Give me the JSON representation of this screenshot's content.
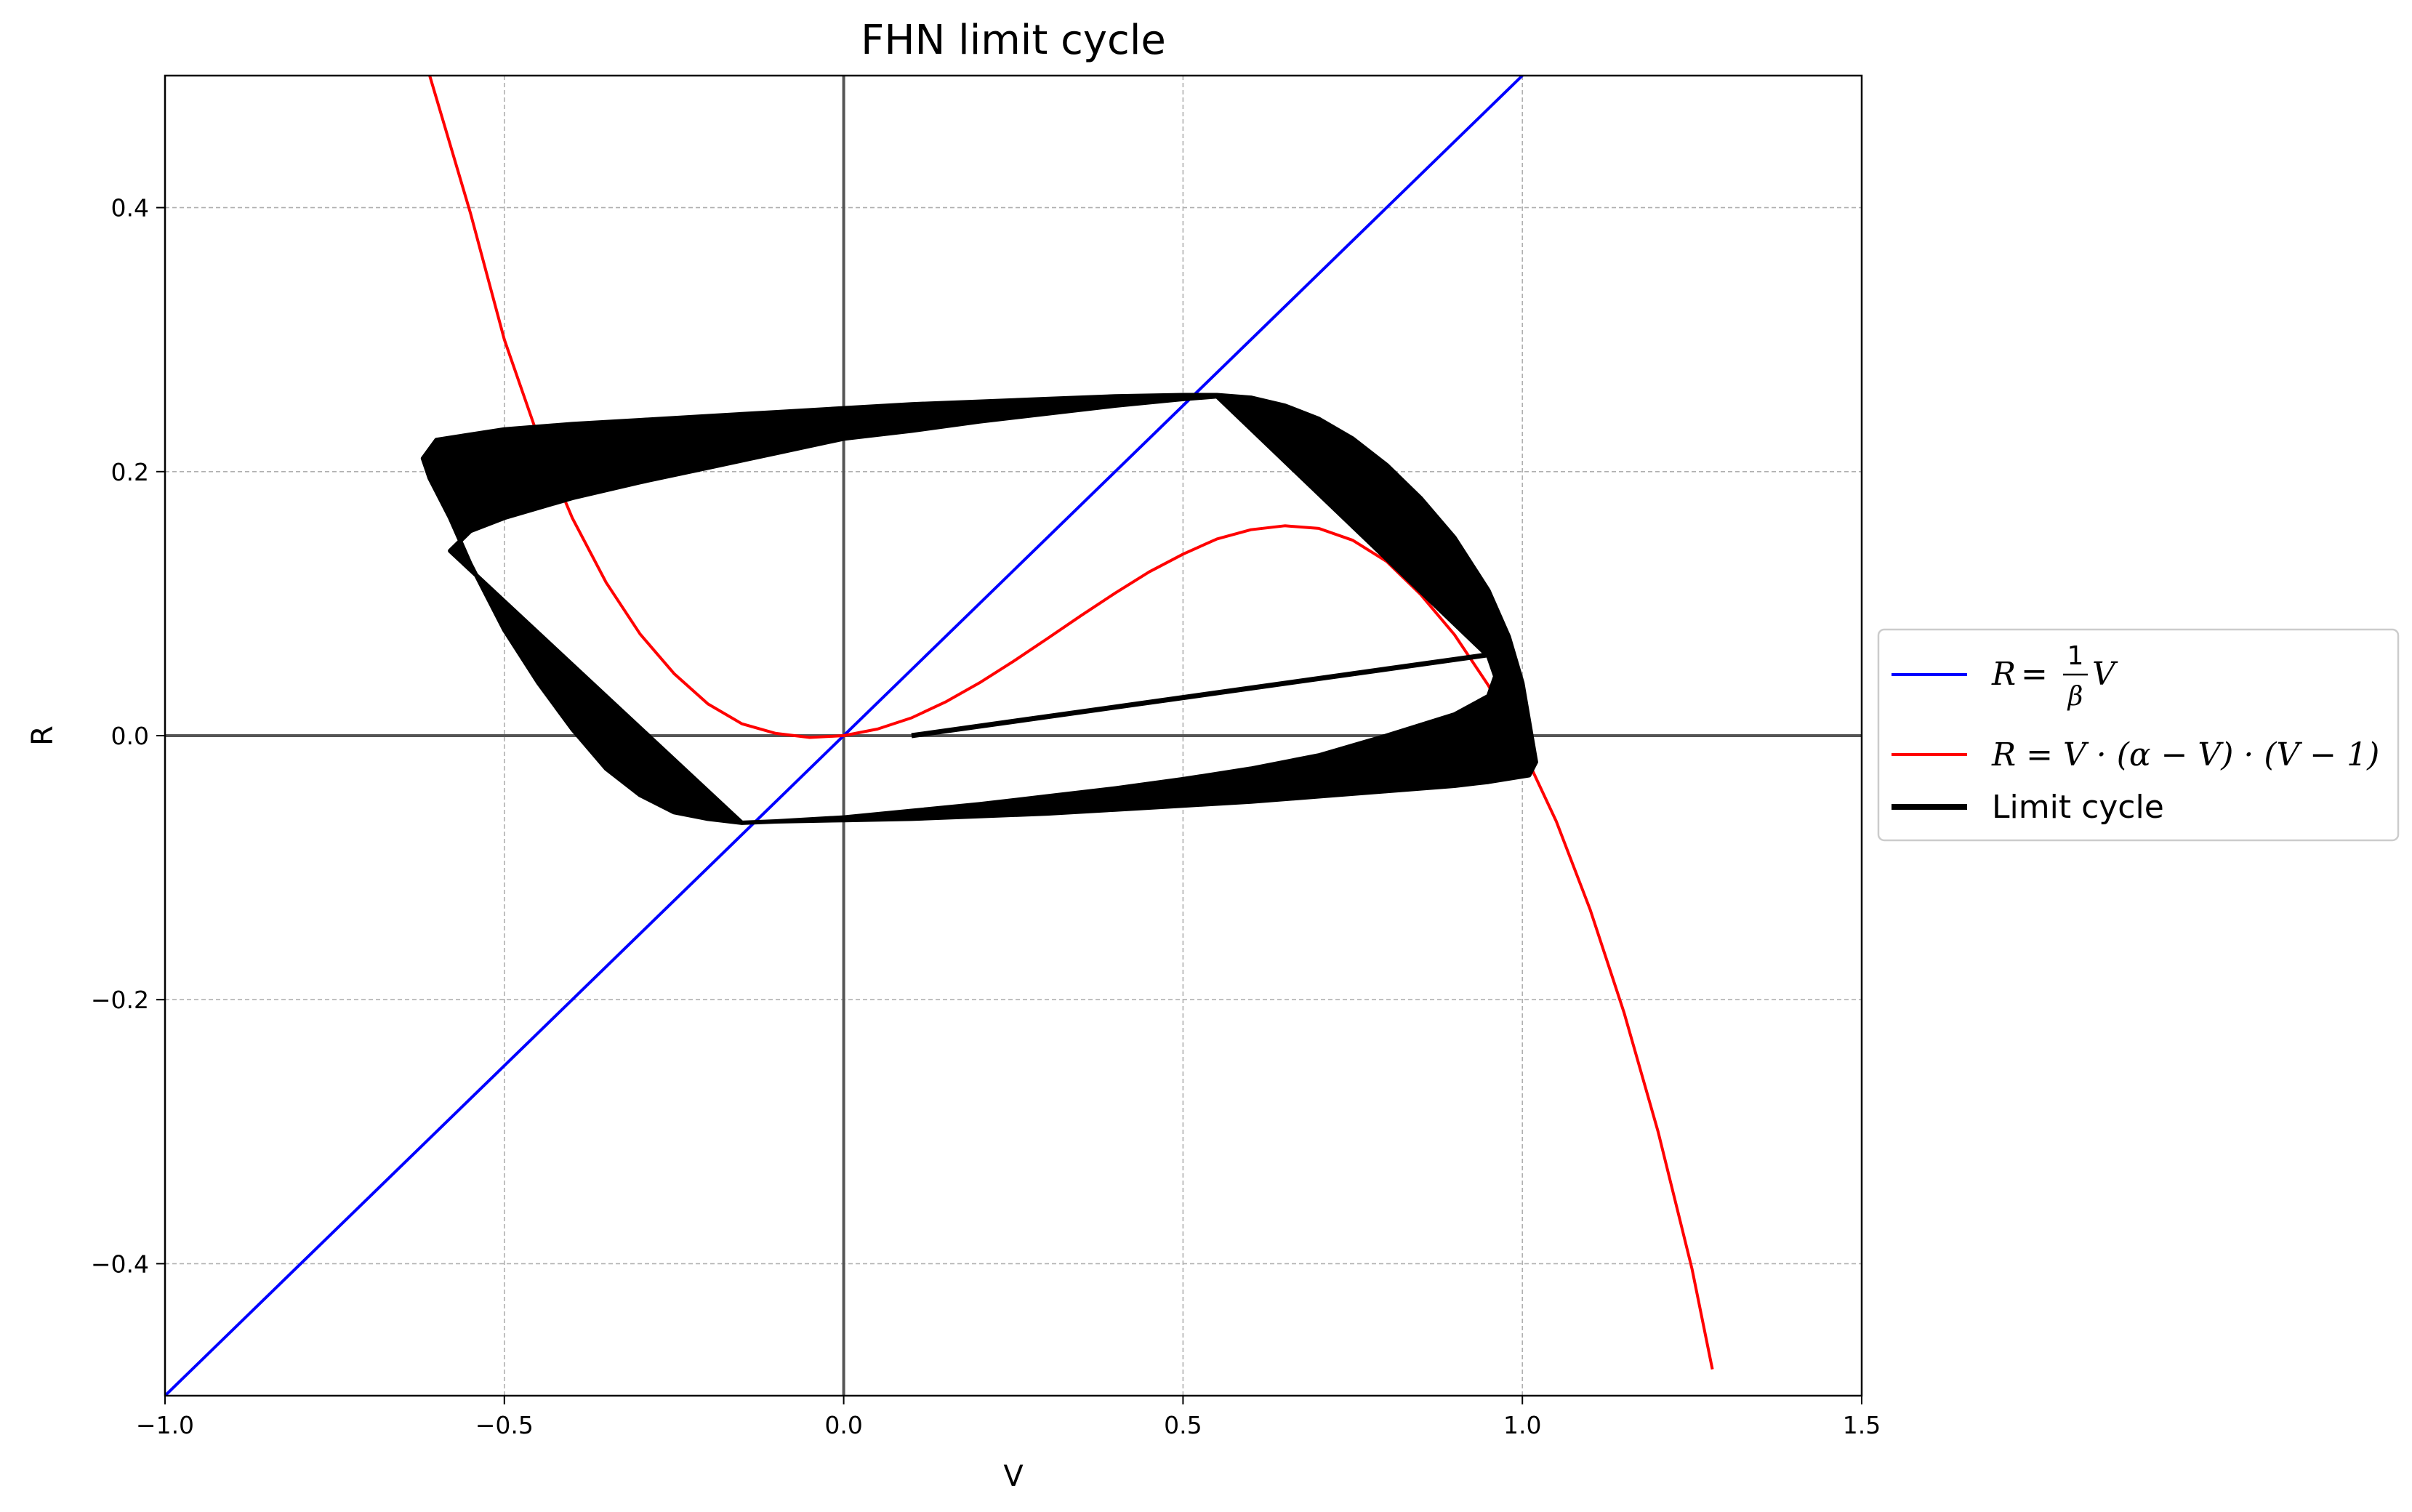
{
  "chart_data": {
    "type": "line",
    "title": "FHN limit cycle",
    "xlabel": "V",
    "ylabel": "R",
    "xlim": [
      -1.0,
      1.5
    ],
    "ylim": [
      -0.5,
      0.5
    ],
    "xticks": [
      -1.0,
      -0.5,
      0.0,
      0.5,
      1.0,
      1.5
    ],
    "xtick_labels": [
      "−1.0",
      "−0.5",
      "0.0",
      "0.5",
      "1.0",
      "1.5"
    ],
    "yticks": [
      -0.4,
      -0.2,
      0.0,
      0.2,
      0.4
    ],
    "ytick_labels": [
      "−0.4",
      "−0.2",
      "0.0",
      "0.2",
      "0.4"
    ],
    "grid": true,
    "legend_position": "center-right, outside plot",
    "series": [
      {
        "name": "R = (1/β)V",
        "color": "#0000ff",
        "x": [
          -1.0,
          1.0
        ],
        "y": [
          -0.5,
          0.5
        ]
      },
      {
        "name": "R = V·(α − V)·(V − 1)",
        "color": "#ff0000",
        "x": [
          -0.61,
          -0.55,
          -0.5,
          -0.45,
          -0.4,
          -0.35,
          -0.3,
          -0.25,
          -0.2,
          -0.15,
          -0.1,
          -0.05,
          0.0,
          0.05,
          0.1,
          0.15,
          0.2,
          0.25,
          0.3,
          0.35,
          0.4,
          0.45,
          0.5,
          0.55,
          0.6,
          0.65,
          0.7,
          0.75,
          0.8,
          0.85,
          0.9,
          0.95,
          1.0,
          1.05,
          1.1,
          1.15,
          1.2,
          1.25,
          1.28
        ],
        "y": [
          0.5,
          0.396,
          0.3,
          0.226,
          0.165,
          0.116,
          0.077,
          0.047,
          0.024,
          0.009,
          0.0017,
          -0.0014,
          0.0,
          0.005,
          0.0135,
          0.0255,
          0.04,
          0.0563,
          0.0735,
          0.091,
          0.108,
          0.124,
          0.1375,
          0.149,
          0.156,
          0.159,
          0.157,
          0.148,
          0.132,
          0.107,
          0.0765,
          0.038,
          -0.01,
          -0.065,
          -0.132,
          -0.21,
          -0.3,
          -0.404,
          -0.48
        ]
      },
      {
        "name": "Limit cycle",
        "color": "#000000",
        "outer_x": [
          -0.62,
          -0.6,
          -0.5,
          -0.4,
          -0.3,
          -0.2,
          -0.1,
          0.0,
          0.1,
          0.2,
          0.3,
          0.4,
          0.5,
          0.55,
          0.6,
          0.65,
          0.7,
          0.75,
          0.8,
          0.85,
          0.9,
          0.95,
          0.98,
          1.0,
          1.02,
          1.01,
          0.95,
          0.9,
          0.8,
          0.7,
          0.6,
          0.5,
          0.4,
          0.3,
          0.2,
          0.1,
          0.0,
          -0.1,
          -0.15,
          -0.2,
          -0.25,
          -0.3,
          -0.35,
          -0.4,
          -0.45,
          -0.5,
          -0.55,
          -0.58,
          -0.61,
          -0.62
        ],
        "outer_y": [
          0.21,
          0.224,
          0.232,
          0.236,
          0.239,
          0.242,
          0.245,
          0.248,
          0.251,
          0.253,
          0.255,
          0.257,
          0.258,
          0.258,
          0.256,
          0.25,
          0.24,
          0.225,
          0.205,
          0.18,
          0.15,
          0.11,
          0.075,
          0.04,
          -0.02,
          -0.03,
          -0.035,
          -0.038,
          -0.042,
          -0.046,
          -0.05,
          -0.053,
          -0.056,
          -0.059,
          -0.061,
          -0.063,
          -0.064,
          -0.065,
          -0.066,
          -0.063,
          -0.058,
          -0.045,
          -0.025,
          0.005,
          0.04,
          0.08,
          0.13,
          0.165,
          0.195,
          0.21
        ],
        "inner_x": [
          -0.58,
          -0.55,
          -0.5,
          -0.4,
          -0.3,
          -0.2,
          -0.1,
          0.0,
          0.1,
          0.2,
          0.3,
          0.4,
          0.5,
          0.55,
          0.95,
          0.96,
          0.95,
          0.9,
          0.8,
          0.7,
          0.6,
          0.5,
          0.4,
          0.3,
          0.2,
          0.1,
          0.0,
          -0.1,
          -0.15
        ],
        "inner_y": [
          0.14,
          0.155,
          0.165,
          0.18,
          0.192,
          0.203,
          0.214,
          0.225,
          0.231,
          0.238,
          0.244,
          0.25,
          0.255,
          0.257,
          0.06,
          0.045,
          0.03,
          0.016,
          0.0,
          -0.015,
          -0.025,
          -0.033,
          -0.04,
          -0.046,
          -0.052,
          -0.057,
          -0.062,
          -0.065,
          -0.066
        ],
        "transient_x": [
          0.1,
          0.96
        ],
        "transient_y": [
          0.0,
          0.062
        ]
      }
    ],
    "legend": [
      {
        "label_parts": [
          "R",
          " = ",
          "1",
          "β",
          "V"
        ],
        "color": "#0000ff"
      },
      {
        "label": "R = V · (α − V) · (V − 1)",
        "color": "#ff0000"
      },
      {
        "label": "Limit cycle",
        "color": "#000000"
      }
    ]
  }
}
